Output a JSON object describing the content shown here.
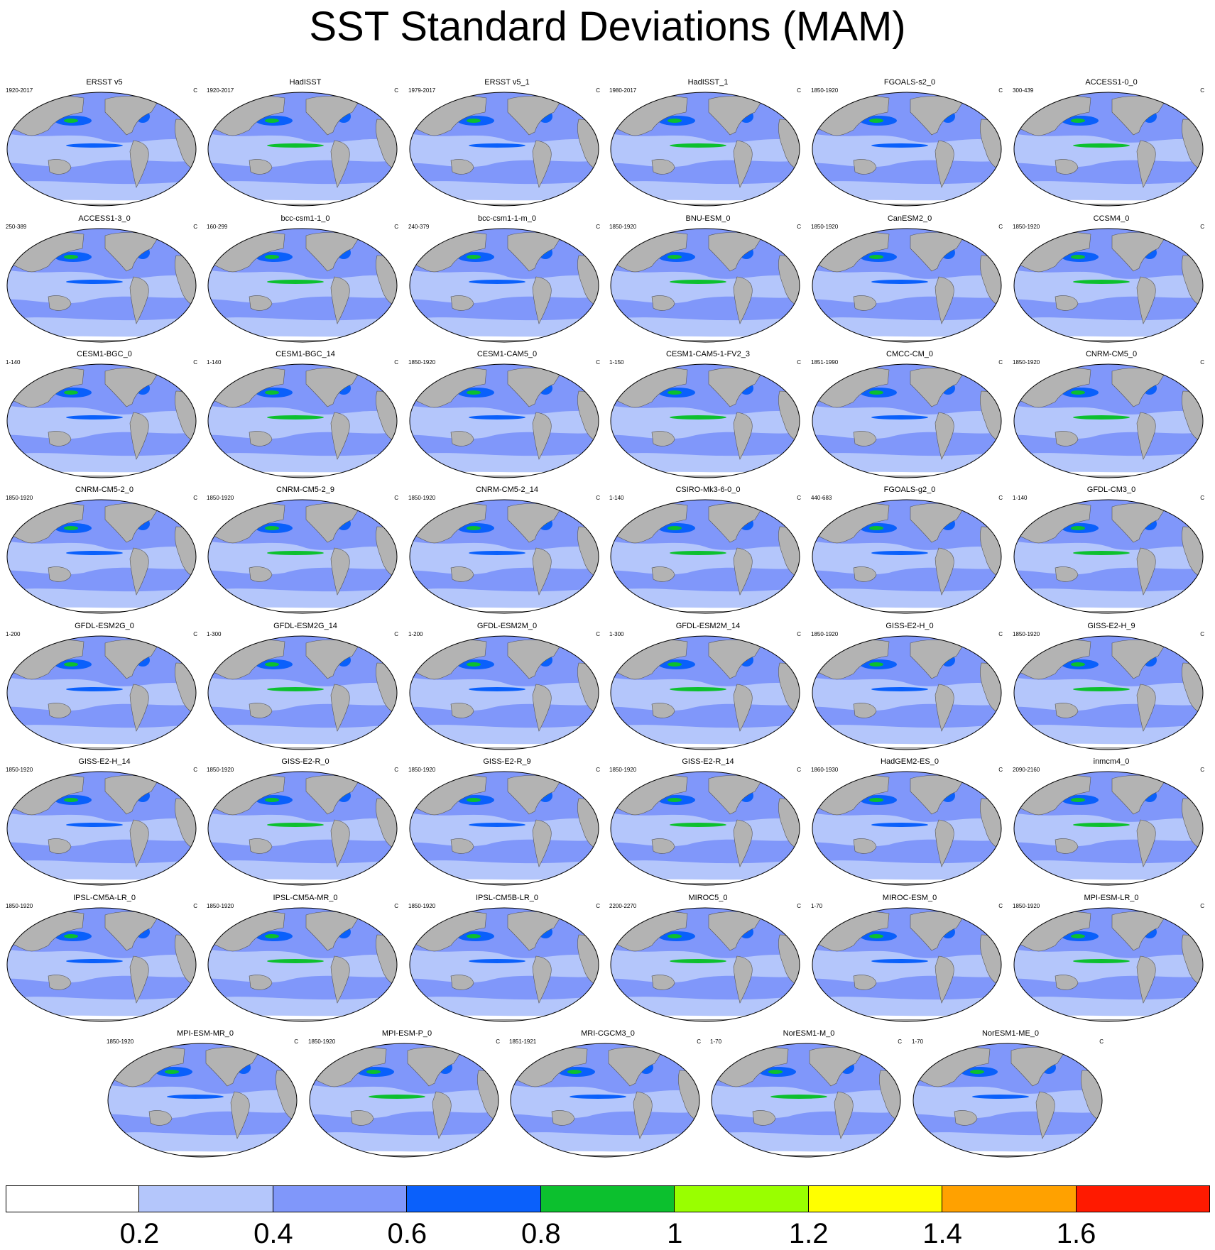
{
  "title": "SST Standard Deviations (MAM)",
  "units": "C",
  "colorbar": {
    "levels": [
      "0.2",
      "0.4",
      "0.6",
      "0.8",
      "1",
      "1.2",
      "1.4",
      "1.6"
    ],
    "colors": [
      "#ffffff",
      "#b4c6fb",
      "#8097fa",
      "#0a60fb",
      "#0cc02e",
      "#99ff00",
      "#ffff00",
      "#ffa100",
      "#ff1a00"
    ]
  },
  "land_color": "#b3b3b3",
  "panels": [
    {
      "name": "ERSST v5",
      "years": "1920-2017"
    },
    {
      "name": "HadISST",
      "years": "1920-2017"
    },
    {
      "name": "ERSST v5_1",
      "years": "1979-2017"
    },
    {
      "name": "HadISST_1",
      "years": "1980-2017"
    },
    {
      "name": "FGOALS-s2_0",
      "years": "1850-1920"
    },
    {
      "name": "ACCESS1-0_0",
      "years": "300-439"
    },
    {
      "name": "ACCESS1-3_0",
      "years": "250-389"
    },
    {
      "name": "bcc-csm1-1_0",
      "years": "160-299"
    },
    {
      "name": "bcc-csm1-1-m_0",
      "years": "240-379"
    },
    {
      "name": "BNU-ESM_0",
      "years": "1850-1920"
    },
    {
      "name": "CanESM2_0",
      "years": "1850-1920"
    },
    {
      "name": "CCSM4_0",
      "years": "1850-1920"
    },
    {
      "name": "CESM1-BGC_0",
      "years": "1-140"
    },
    {
      "name": "CESM1-BGC_14",
      "years": "1-140"
    },
    {
      "name": "CESM1-CAM5_0",
      "years": "1850-1920"
    },
    {
      "name": "CESM1-CAM5-1-FV2_3",
      "years": "1-150"
    },
    {
      "name": "CMCC-CM_0",
      "years": "1851-1990"
    },
    {
      "name": "CNRM-CM5_0",
      "years": "1850-1920"
    },
    {
      "name": "CNRM-CM5-2_0",
      "years": "1850-1920"
    },
    {
      "name": "CNRM-CM5-2_9",
      "years": "1850-1920"
    },
    {
      "name": "CNRM-CM5-2_14",
      "years": "1850-1920"
    },
    {
      "name": "CSIRO-Mk3-6-0_0",
      "years": "1-140"
    },
    {
      "name": "FGOALS-g2_0",
      "years": "440-683"
    },
    {
      "name": "GFDL-CM3_0",
      "years": "1-140"
    },
    {
      "name": "GFDL-ESM2G_0",
      "years": "1-200"
    },
    {
      "name": "GFDL-ESM2G_14",
      "years": "1-300"
    },
    {
      "name": "GFDL-ESM2M_0",
      "years": "1-200"
    },
    {
      "name": "GFDL-ESM2M_14",
      "years": "1-300"
    },
    {
      "name": "GISS-E2-H_0",
      "years": "1850-1920"
    },
    {
      "name": "GISS-E2-H_9",
      "years": "1850-1920"
    },
    {
      "name": "GISS-E2-H_14",
      "years": "1850-1920"
    },
    {
      "name": "GISS-E2-R_0",
      "years": "1850-1920"
    },
    {
      "name": "GISS-E2-R_9",
      "years": "1850-1920"
    },
    {
      "name": "GISS-E2-R_14",
      "years": "1850-1920"
    },
    {
      "name": "HadGEM2-ES_0",
      "years": "1860-1930"
    },
    {
      "name": "inmcm4_0",
      "years": "2090-2160"
    },
    {
      "name": "IPSL-CM5A-LR_0",
      "years": "1850-1920"
    },
    {
      "name": "IPSL-CM5A-MR_0",
      "years": "1850-1920"
    },
    {
      "name": "IPSL-CM5B-LR_0",
      "years": "1850-1920"
    },
    {
      "name": "MIROC5_0",
      "years": "2200-2270"
    },
    {
      "name": "MIROC-ESM_0",
      "years": "1-70"
    },
    {
      "name": "MPI-ESM-LR_0",
      "years": "1850-1920"
    },
    {
      "name": "MPI-ESM-MR_0",
      "years": "1850-1920"
    },
    {
      "name": "MPI-ESM-P_0",
      "years": "1850-1920"
    },
    {
      "name": "MRI-CGCM3_0",
      "years": "1851-1921"
    },
    {
      "name": "NorESM1-M_0",
      "years": "1-70"
    },
    {
      "name": "NorESM1-ME_0",
      "years": "1-70"
    }
  ]
}
